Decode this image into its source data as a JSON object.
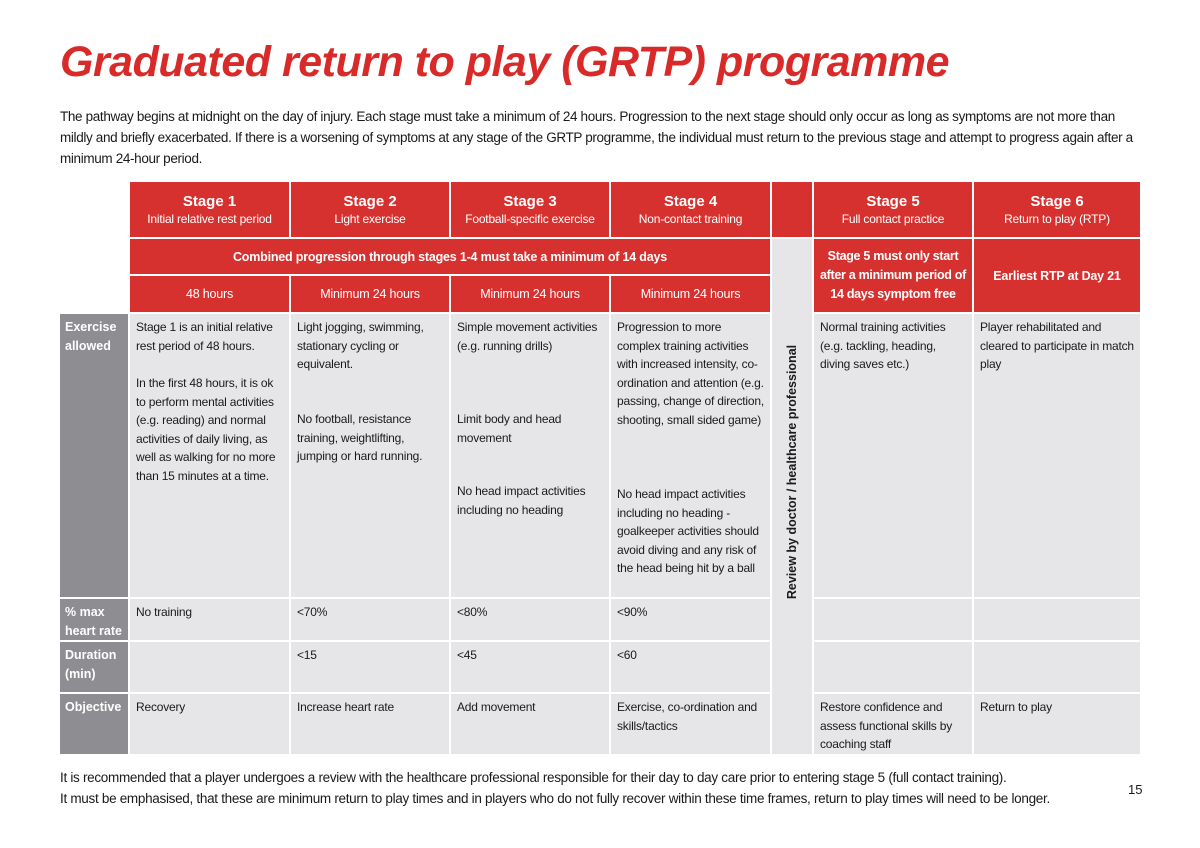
{
  "header": {
    "title": "Graduated return to play (GRTP) programme",
    "intro": "The pathway begins at midnight on the day of injury. Each stage must take a minimum of 24 hours. Progression to the next stage should only occur as long as symptoms are not more than mildly and briefly exacerbated. If there is a worsening of symptoms at any stage of the GRTP programme, the individual must return to the previous stage and attempt to progress again after a minimum 24-hour period."
  },
  "table": {
    "stages": [
      {
        "name": "Stage 1",
        "subtitle": "Initial relative rest period"
      },
      {
        "name": "Stage 2",
        "subtitle": "Light exercise"
      },
      {
        "name": "Stage 3",
        "subtitle": "Football-specific exercise"
      },
      {
        "name": "Stage 4",
        "subtitle": "Non-contact training"
      },
      {
        "name": "Stage 5",
        "subtitle": "Full contact practice"
      },
      {
        "name": "Stage 6",
        "subtitle": "Return to play (RTP)"
      }
    ],
    "combined_note": "Combined progression through stages 1-4 must take a minimum of 14 days",
    "hours": [
      "48 hours",
      "Minimum 24 hours",
      "Minimum 24 hours",
      "Minimum 24 hours"
    ],
    "stage5_note": "Stage 5 must only start after a minimum period of 14 days symptom free",
    "stage6_note": "Earliest RTP at Day 21",
    "review_label": "Review by doctor / healthcare professional",
    "rows": [
      {
        "label": "Exercise allowed",
        "cells": [
          [
            "Stage 1 is an initial relative rest period of 48 hours.",
            "In the first 48 hours, it is ok to perform mental activities (e.g. reading) and normal activities of daily living, as well as walking for no more than 15 minutes at a time."
          ],
          [
            "Light jogging, swimming, stationary cycling or equivalent.",
            "No football, resistance training, weightlifting, jumping or hard running."
          ],
          [
            "Simple movement activities (e.g. running drills)",
            "Limit body and head movement",
            "No head impact activities including no heading"
          ],
          [
            "Progression to more complex training activities with increased intensity, co-ordination and attention (e.g. passing, change of direction, shooting, small sided game)",
            "No head impact activities including no heading - goalkeeper activities should avoid diving and any risk of the head being hit by a ball"
          ],
          [
            "Normal training activities (e.g. tackling, heading, diving saves etc.)"
          ],
          [
            "Player rehabilitated and cleared to participate in match play"
          ]
        ]
      },
      {
        "label": "% max heart rate",
        "cells": [
          [
            "No training"
          ],
          [
            "<70%"
          ],
          [
            "<80%"
          ],
          [
            "<90%"
          ],
          [],
          []
        ]
      },
      {
        "label": "Duration (min)",
        "cells": [
          [],
          [
            "<15"
          ],
          [
            "<45"
          ],
          [
            "<60"
          ],
          [],
          []
        ]
      },
      {
        "label": "Objective",
        "cells": [
          [
            "Recovery"
          ],
          [
            "Increase heart rate"
          ],
          [
            "Add movement"
          ],
          [
            "Exercise, co-ordination and skills/tactics"
          ],
          [
            "Restore confidence and assess functional skills by coaching staff"
          ],
          [
            "Return to play"
          ]
        ]
      }
    ]
  },
  "footer": {
    "lines": [
      "It is recommended that a player undergoes a review with the healthcare professional responsible for their day to day care prior to entering stage 5 (full contact training).",
      "It must be emphasised, that these are minimum return to play times and in players who do not fully recover within these time frames, return to play times will need to be longer."
    ],
    "page_number": "15"
  }
}
